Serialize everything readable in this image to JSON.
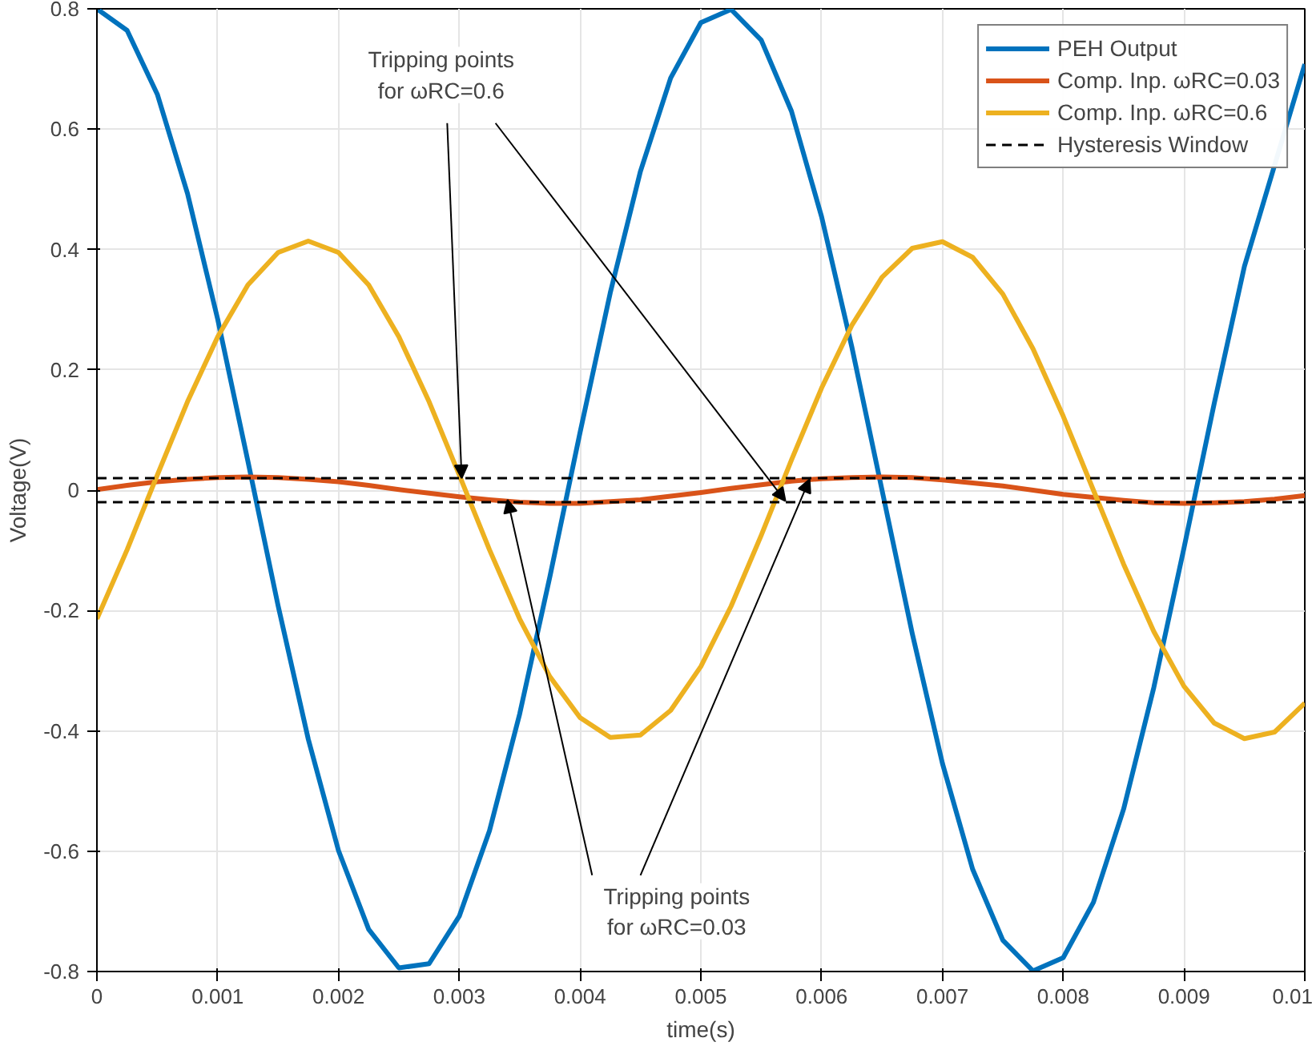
{
  "chart_data": {
    "type": "line",
    "xlabel": "time(s)",
    "ylabel": "Voltage(V)",
    "x": [
      0,
      0.00025,
      0.0005,
      0.00075,
      0.001,
      0.00125,
      0.0015,
      0.00175,
      0.002,
      0.00225,
      0.0025,
      0.00275,
      0.003,
      0.00325,
      0.0035,
      0.00375,
      0.004,
      0.00425,
      0.0045,
      0.00475,
      0.005,
      0.00525,
      0.0055,
      0.00575,
      0.006,
      0.00625,
      0.0065,
      0.00675,
      0.007,
      0.00725,
      0.0075,
      0.00775,
      0.008,
      0.00825,
      0.0085,
      0.00875,
      0.009,
      0.00925,
      0.0095,
      0.00975,
      0.01
    ],
    "series": [
      {
        "name": "PEH Output",
        "color": "#0072bd",
        "x": [
          0,
          0.00025,
          0.0005,
          0.00075,
          0.001,
          0.00125,
          0.0015,
          0.00175,
          0.002,
          0.00225,
          0.0025,
          0.00275,
          0.003,
          0.00325,
          0.0035,
          0.00375,
          0.004,
          0.00425,
          0.0045,
          0.00475,
          0.005,
          0.00525,
          0.0055,
          0.00575,
          0.006,
          0.00625,
          0.0065,
          0.00675,
          0.007,
          0.00725,
          0.0075,
          0.00775,
          0.008,
          0.00825,
          0.0085,
          0.00875,
          0.009,
          0.00925,
          0.0095,
          0.01
        ],
        "values": [
          0.8,
          0.764,
          0.658,
          0.493,
          0.284,
          0.048,
          -0.192,
          -0.414,
          -0.599,
          -0.73,
          -0.794,
          -0.787,
          -0.708,
          -0.566,
          -0.372,
          -0.144,
          0.096,
          0.328,
          0.53,
          0.685,
          0.777,
          0.799,
          0.748,
          0.63,
          0.454,
          0.238,
          0,
          -0.238,
          -0.454,
          -0.63,
          -0.748,
          -0.799,
          -0.777,
          -0.685,
          -0.53,
          -0.328,
          -0.096,
          0.144,
          0.372,
          0.708
        ]
      },
      {
        "name": "Comp. Inp. ωRC=0.03",
        "color": "#d95319",
        "values": [
          0.001,
          0.008,
          0.014,
          0.018,
          0.021,
          0.022,
          0.021,
          0.018,
          0.014,
          0.008,
          0.001,
          -0.005,
          -0.011,
          -0.016,
          -0.02,
          -0.022,
          -0.022,
          -0.019,
          -0.016,
          -0.01,
          -0.004,
          0.003,
          0.009,
          0.015,
          0.019,
          0.021,
          0.022,
          0.021,
          0.017,
          0.012,
          0.007,
          0,
          -0.007,
          -0.012,
          -0.017,
          -0.021,
          -0.022,
          -0.021,
          -0.019,
          -0.015,
          -0.009
        ]
      },
      {
        "name": "Comp. Inp. ωRC=0.6",
        "color": "#edb120",
        "values": [
          -0.214,
          -0.099,
          0.025,
          0.147,
          0.255,
          0.341,
          0.395,
          0.414,
          0.395,
          0.341,
          0.255,
          0.147,
          0.025,
          -0.099,
          -0.214,
          -0.31,
          -0.378,
          -0.411,
          -0.407,
          -0.366,
          -0.293,
          -0.193,
          -0.075,
          0.05,
          0.17,
          0.274,
          0.354,
          0.402,
          0.413,
          0.387,
          0.326,
          0.235,
          0.123,
          0,
          -0.123,
          -0.235,
          -0.326,
          -0.387,
          -0.413,
          -0.402,
          -0.354
        ]
      }
    ],
    "ref_lines": [
      {
        "axis": "y",
        "value": 0.02,
        "label": "Hysteresis Window",
        "color": "#000000",
        "line_style": "dashed"
      },
      {
        "axis": "y",
        "value": -0.02,
        "color": "#000000",
        "line_style": "dashed"
      }
    ],
    "xlim": [
      0,
      0.01
    ],
    "xticks": [
      0,
      0.001,
      0.002,
      0.003,
      0.004,
      0.005,
      0.006,
      0.007,
      0.008,
      0.009,
      0.01
    ],
    "ylim": [
      -0.8,
      0.8
    ],
    "yticks": [
      -0.8,
      -0.6,
      -0.4,
      -0.2,
      0,
      0.2,
      0.4,
      0.6,
      0.8
    ],
    "grid": true,
    "legend": "top right",
    "line_style": "solid",
    "annotations": [
      {
        "text": "Tripping points\nfor ωRC=0.6",
        "x": 0.00302,
        "y": 0.02
      },
      {
        "text": "Tripping points\nfor ωRC=0.03",
        "x": 0.0034,
        "y": -0.016
      }
    ]
  }
}
